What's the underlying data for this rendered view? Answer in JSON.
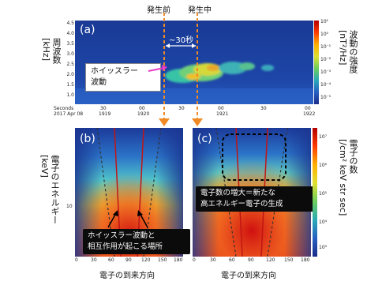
{
  "annotations": {
    "before_onset": "発生前",
    "during_onset": "発生中",
    "duration": "~30秒"
  },
  "panel_a": {
    "label": "(a)",
    "ylabel": "周波数\n[kHz]",
    "yticks": [
      "4.5",
      "4.0",
      "3.5",
      "3.0",
      "2.5",
      "2.0",
      "1.5",
      "1.0"
    ],
    "time_header_left": "Seconds",
    "time_header_date": "2017 Apr 08",
    "xtick_seconds": [
      "30",
      "00",
      "30",
      "00",
      "30",
      "00"
    ],
    "xtick_times": [
      "1919",
      "1920",
      "1921",
      "1922"
    ],
    "whistler_box": "ホイッスラー\n波動",
    "colorbar_ticks": [
      "10¹",
      "10⁰",
      "10⁻¹",
      "10⁻²",
      "10⁻³",
      "10⁻⁴",
      "10⁻⁵"
    ],
    "colorbar_label": "波動の強度\n[nT²/Hz]"
  },
  "panel_b": {
    "label": "(b)",
    "callout_line1": "ホイッスラー波動と",
    "callout_line2": "相互作用が起こる場所",
    "xticks": [
      "0",
      "30",
      "60",
      "90",
      "120",
      "150",
      "180"
    ],
    "xlabel": "電子の到来方向"
  },
  "panel_c": {
    "label": "(c)",
    "callout_line1": "電子数の増大＝新たな",
    "callout_line2": "高エネルギー電子の生成",
    "xticks": [
      "0",
      "30",
      "60",
      "90",
      "120",
      "150",
      "180"
    ],
    "xlabel": "電子の到来方向"
  },
  "lower_left_axis": {
    "ylabel": "電子のエネルギー\n[keV]",
    "ytick_10": "10"
  },
  "lower_colorbar": {
    "ticks": [
      "10⁷",
      "10⁶",
      "10⁵",
      "10⁴",
      "10³"
    ],
    "label": "電子の数\n[/cm² keV str sec]"
  },
  "colors": {
    "arrow_orange": "#f08a24",
    "spectrogram_bg": "#1a3c9a",
    "whistler_arrow": "#e63cc7"
  }
}
